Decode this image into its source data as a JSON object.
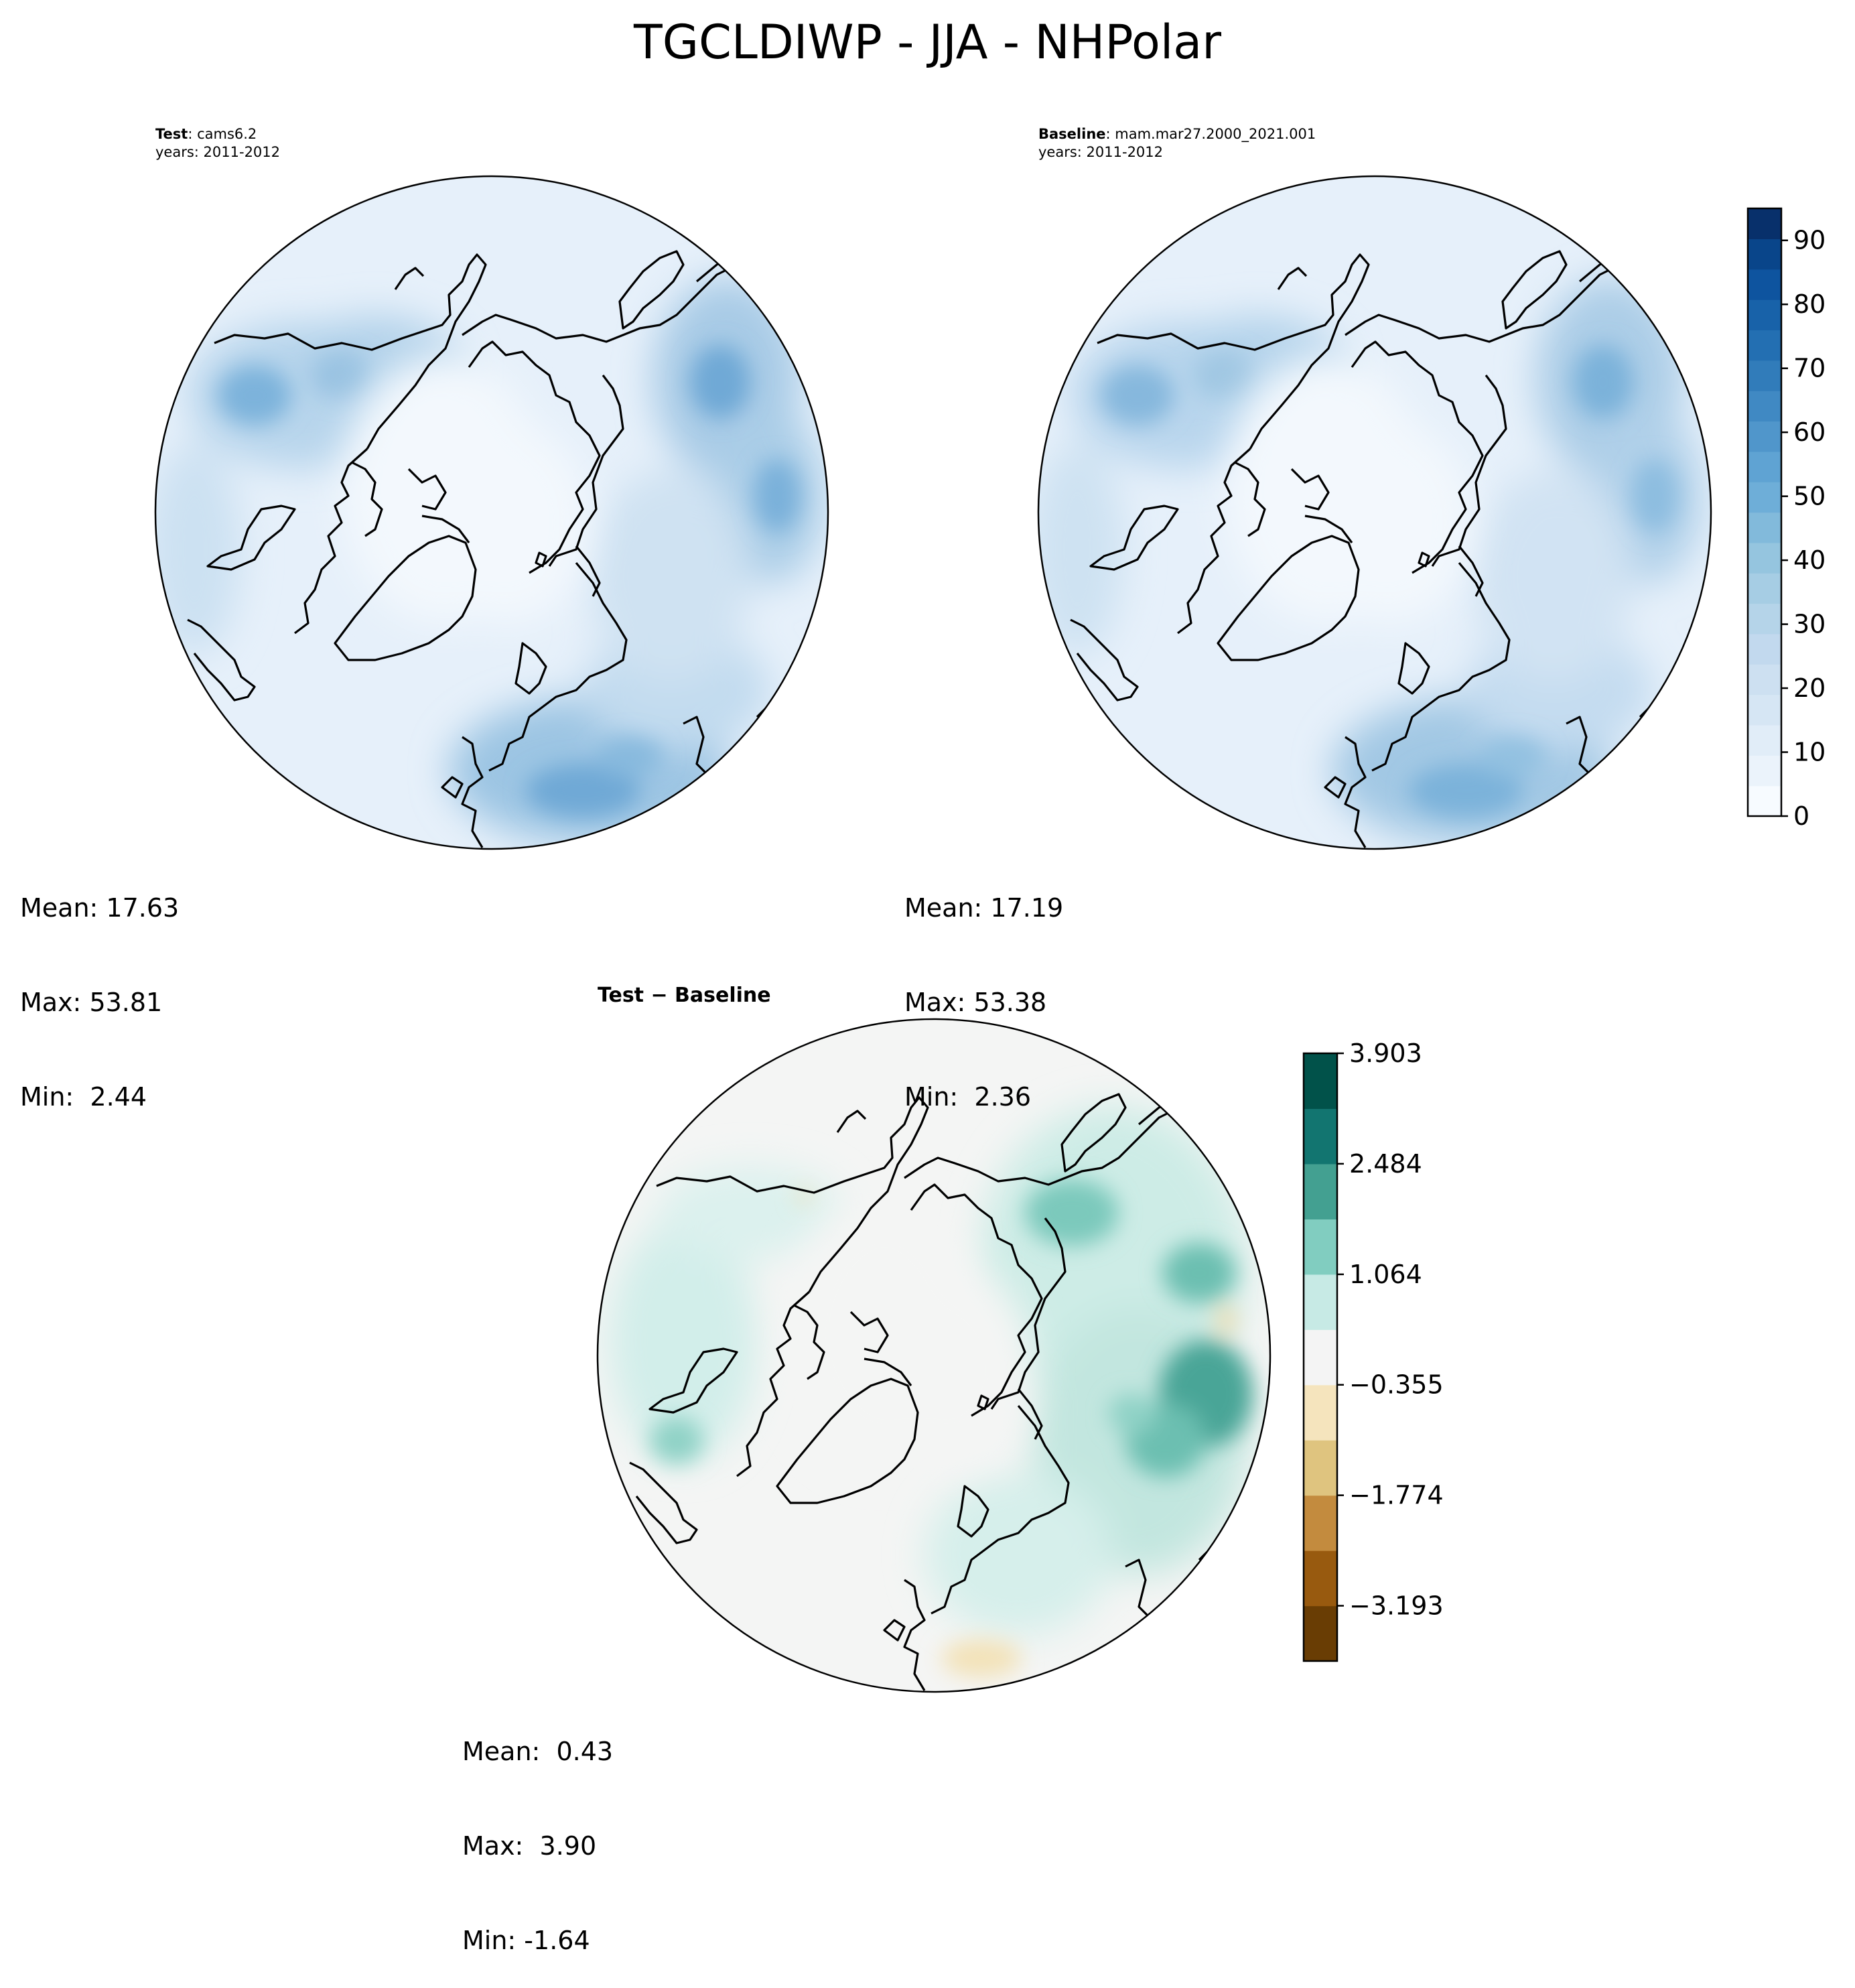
{
  "figure": {
    "title": "TGCLDIWP - JJA - NHPolar"
  },
  "panels": {
    "test": {
      "label_bold": "Test",
      "label_rest": ": cams6.2",
      "years": "years: 2011-2012",
      "stats": {
        "mean": "Mean: 17.63",
        "max": "Max: 53.81",
        "min": "Min:  2.44"
      }
    },
    "baseline": {
      "label_bold": "Baseline",
      "label_rest": ": mam.mar27.2000_2021.001",
      "years": "years: 2011-2012",
      "stats": {
        "mean": "Mean: 17.19",
        "max": "Max: 53.38",
        "min": "Min:  2.36"
      }
    },
    "difference": {
      "title": "Test − Baseline",
      "stats": {
        "mean": "Mean:  0.43",
        "max": "Max:  3.90",
        "min": "Min: -1.64"
      }
    }
  },
  "colorbars": {
    "main": {
      "vmin": 0,
      "vmax": 95,
      "ticks": [
        "0",
        "10",
        "20",
        "30",
        "40",
        "50",
        "60",
        "70",
        "80",
        "90"
      ],
      "tick_values": [
        0,
        10,
        20,
        30,
        40,
        50,
        60,
        70,
        80,
        90
      ],
      "colors": [
        "#f7fbff",
        "#ebf3fb",
        "#e1edf8",
        "#d6e6f4",
        "#cde0f1",
        "#c2d9ee",
        "#b5d4e9",
        "#a6cde4",
        "#95c5df",
        "#82badb",
        "#6eaed8",
        "#5fa3d3",
        "#5096cb",
        "#4089c3",
        "#317cba",
        "#236fb2",
        "#1862a9",
        "#0e549f",
        "#09458a",
        "#08306b"
      ]
    },
    "diff": {
      "vmin": -3.903,
      "vmax": 3.903,
      "ticks": [
        "3.903",
        "2.484",
        "1.064",
        "−0.355",
        "−1.774",
        "−3.193"
      ],
      "tick_values": [
        3.903,
        2.484,
        1.064,
        -0.355,
        -1.774,
        -3.193
      ],
      "colors": [
        "#693d04",
        "#985a0f",
        "#c38b3e",
        "#dfc47f",
        "#f5e4bd",
        "#f4f4f4",
        "#c7eae5",
        "#81cdc0",
        "#43a091",
        "#127570",
        "#01524a"
      ]
    }
  }
}
